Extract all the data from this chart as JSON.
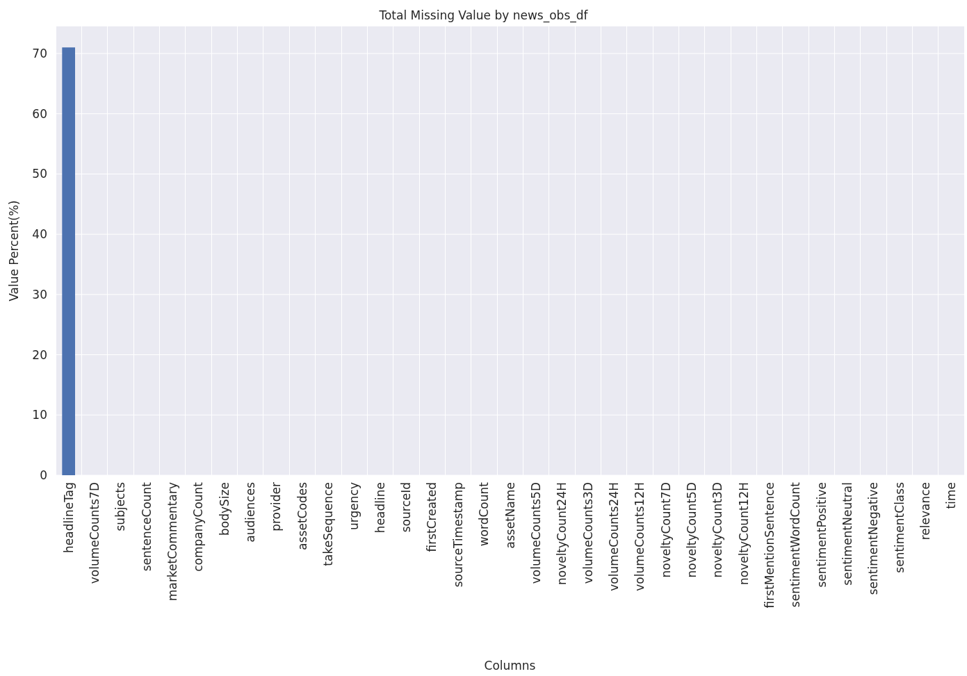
{
  "chart_data": {
    "type": "bar",
    "title": "Total Missing Value by news_obs_df",
    "xlabel": "Columns",
    "ylabel": "Value Percent(%)",
    "categories": [
      "headlineTag",
      "volumeCounts7D",
      "subjects",
      "sentenceCount",
      "marketCommentary",
      "companyCount",
      "bodySize",
      "audiences",
      "provider",
      "assetCodes",
      "takeSequence",
      "urgency",
      "headline",
      "sourceId",
      "firstCreated",
      "sourceTimestamp",
      "wordCount",
      "assetName",
      "volumeCounts5D",
      "noveltyCount24H",
      "volumeCounts3D",
      "volumeCounts24H",
      "volumeCounts12H",
      "noveltyCount7D",
      "noveltyCount5D",
      "noveltyCount3D",
      "noveltyCount12H",
      "firstMentionSentence",
      "sentimentWordCount",
      "sentimentPositive",
      "sentimentNeutral",
      "sentimentNegative",
      "sentimentClass",
      "relevance",
      "time"
    ],
    "values": [
      71,
      0,
      0,
      0,
      0,
      0,
      0,
      0,
      0,
      0,
      0,
      0,
      0,
      0,
      0,
      0,
      0,
      0,
      0,
      0,
      0,
      0,
      0,
      0,
      0,
      0,
      0,
      0,
      0,
      0,
      0,
      0,
      0,
      0,
      0
    ],
    "color": "#4c72b0",
    "ylim": [
      0,
      74.5
    ],
    "yticks": [
      0,
      10,
      20,
      30,
      40,
      50,
      60,
      70
    ],
    "grid": true
  }
}
